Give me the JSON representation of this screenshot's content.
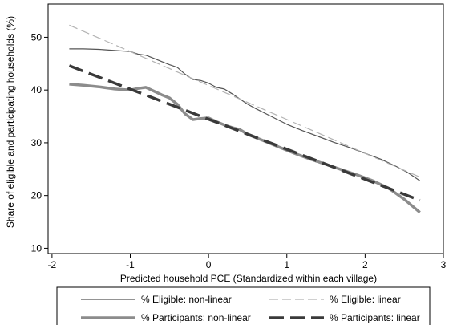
{
  "chart_data": {
    "type": "line",
    "xlabel": "Predicted household PCE (Standardized within each village)",
    "ylabel": "Share of eligible and participating households (%)",
    "xlim": [
      -2.05,
      3.0
    ],
    "ylim": [
      9.0,
      56.3
    ],
    "x_ticks": [
      "-2",
      "-1",
      "0",
      "1",
      "2",
      "3"
    ],
    "y_ticks": [
      "10",
      "20",
      "30",
      "40",
      "50"
    ],
    "grid": false,
    "legend_position": "bottom",
    "series": [
      {
        "name": "% Eligible: non-linear",
        "color": "#555555",
        "style": "solid-thin",
        "points": [
          [
            -1.78,
            47.8
          ],
          [
            -1.6,
            47.8
          ],
          [
            -1.4,
            47.7
          ],
          [
            -1.2,
            47.5
          ],
          [
            -1.0,
            47.3
          ],
          [
            -0.9,
            46.8
          ],
          [
            -0.8,
            46.6
          ],
          [
            -0.7,
            46.0
          ],
          [
            -0.6,
            45.4
          ],
          [
            -0.5,
            44.8
          ],
          [
            -0.4,
            44.3
          ],
          [
            -0.3,
            43.0
          ],
          [
            -0.2,
            42.0
          ],
          [
            -0.1,
            41.8
          ],
          [
            0.0,
            41.3
          ],
          [
            0.1,
            40.5
          ],
          [
            0.2,
            40.2
          ],
          [
            0.3,
            39.3
          ],
          [
            0.4,
            38.3
          ],
          [
            0.5,
            37.3
          ],
          [
            0.6,
            36.5
          ],
          [
            0.8,
            35.0
          ],
          [
            1.0,
            33.5
          ],
          [
            1.2,
            32.3
          ],
          [
            1.4,
            31.2
          ],
          [
            1.6,
            30.1
          ],
          [
            1.8,
            29.1
          ],
          [
            2.0,
            28.0
          ],
          [
            2.2,
            26.9
          ],
          [
            2.4,
            25.5
          ],
          [
            2.55,
            24.3
          ],
          [
            2.7,
            22.8
          ]
        ]
      },
      {
        "name": "% Eligible: linear",
        "color": "#b3b3b3",
        "style": "dashed-thin",
        "points": [
          [
            -1.78,
            52.3
          ],
          [
            2.7,
            23.5
          ]
        ]
      },
      {
        "name": "% Participants: non-linear",
        "color": "#8c8c8c",
        "style": "solid-thick",
        "points": [
          [
            -1.78,
            41.1
          ],
          [
            -1.6,
            40.9
          ],
          [
            -1.4,
            40.6
          ],
          [
            -1.2,
            40.2
          ],
          [
            -1.0,
            40.0
          ],
          [
            -0.9,
            40.3
          ],
          [
            -0.8,
            40.5
          ],
          [
            -0.7,
            39.8
          ],
          [
            -0.6,
            39.1
          ],
          [
            -0.5,
            38.5
          ],
          [
            -0.4,
            37.3
          ],
          [
            -0.3,
            35.5
          ],
          [
            -0.2,
            34.4
          ],
          [
            -0.1,
            34.6
          ],
          [
            0.0,
            34.7
          ],
          [
            0.1,
            34.0
          ],
          [
            0.2,
            33.4
          ],
          [
            0.3,
            32.9
          ],
          [
            0.4,
            32.5
          ],
          [
            0.5,
            31.6
          ],
          [
            0.7,
            30.4
          ],
          [
            0.9,
            29.2
          ],
          [
            1.1,
            28.0
          ],
          [
            1.3,
            26.9
          ],
          [
            1.5,
            25.9
          ],
          [
            1.7,
            24.9
          ],
          [
            1.9,
            23.9
          ],
          [
            2.1,
            22.8
          ],
          [
            2.3,
            21.4
          ],
          [
            2.5,
            19.3
          ],
          [
            2.7,
            16.8
          ]
        ]
      },
      {
        "name": "% Participants: linear",
        "color": "#3a3a3a",
        "style": "dashed-thick",
        "points": [
          [
            -1.78,
            44.6
          ],
          [
            2.7,
            19.1
          ]
        ]
      }
    ],
    "legend": [
      {
        "label": "% Eligible: non-linear",
        "series": 0
      },
      {
        "label": "% Eligible: linear",
        "series": 1
      },
      {
        "label": "% Participants: non-linear",
        "series": 2
      },
      {
        "label": "% Participants: linear",
        "series": 3
      }
    ]
  }
}
